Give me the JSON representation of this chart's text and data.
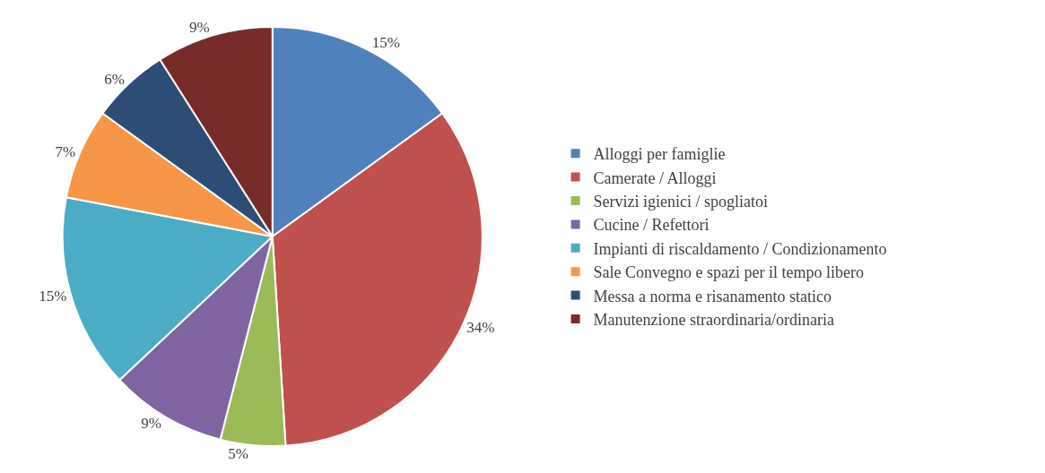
{
  "chart_data": {
    "type": "pie",
    "categories": [
      "Alloggi per famiglie",
      "Camerate / Alloggi",
      "Servizi igienici / spogliatoi",
      "Cucine / Refettori",
      "Impianti di riscaldamento / Condizionamento",
      "Sale Convegno e spazi per il tempo libero",
      "Messa a norma e risanamento statico",
      "Manutenzione straordinaria/ordinaria"
    ],
    "values": [
      15,
      34,
      5,
      9,
      15,
      7,
      6,
      9
    ],
    "value_labels": [
      "15%",
      "34%",
      "5%",
      "9%",
      "15%",
      "7%",
      "6%",
      "9%"
    ],
    "colors": [
      "#4f81bd",
      "#c0504d",
      "#9bbb59",
      "#8064a2",
      "#4bacc6",
      "#f79646",
      "#2c4d75",
      "#772c2a"
    ],
    "legend": "right"
  }
}
